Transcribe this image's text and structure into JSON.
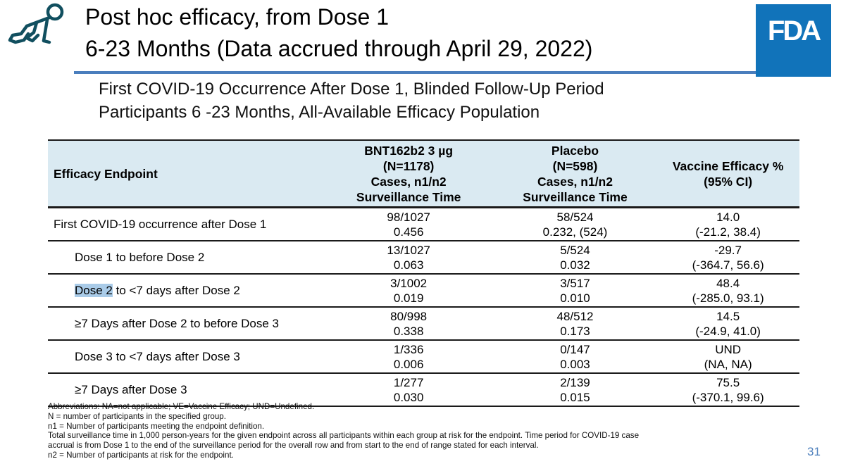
{
  "header": {
    "title_line1": "Post hoc efficacy, from Dose 1",
    "title_line2": "6-23 Months (Data accrued through April 29, 2022)",
    "logo_text": "FDA"
  },
  "icons": {
    "baby_icon": "crawling-baby-outline",
    "fda_logo": "fda-blue-square"
  },
  "subtitle": {
    "line1": "First COVID-19 Occurrence After Dose 1, Blinded Follow-Up Period",
    "line2": "Participants 6 -23 Months, All-Available Efficacy Population"
  },
  "table": {
    "header": {
      "endpoint": "Efficacy Endpoint",
      "bnt_lines": [
        "BNT162b2 3 µg",
        "(N=1178)",
        "Cases, n1/n2",
        "Surveillance Time"
      ],
      "placebo_lines": [
        "Placebo",
        "(N=598)",
        "Cases, n1/n2",
        "Surveillance Time"
      ],
      "ve_lines": [
        "Vaccine Efficacy %",
        "(95% CI)"
      ]
    },
    "rows": [
      {
        "indent": false,
        "endpoint": [
          {
            "text": "First COVID-19 occurrence after Dose 1",
            "highlight": false
          }
        ],
        "cells": [
          [
            "98/1027",
            "0.456"
          ],
          [
            "58/524",
            "0.232, (524)"
          ],
          [
            "14.0",
            "(-21.2, 38.4)"
          ]
        ]
      },
      {
        "indent": true,
        "endpoint": [
          {
            "text": "Dose 1 to before Dose 2",
            "highlight": false
          }
        ],
        "cells": [
          [
            "13/1027",
            "0.063"
          ],
          [
            "5/524",
            "0.032"
          ],
          [
            "-29.7",
            "(-364.7, 56.6)"
          ]
        ]
      },
      {
        "indent": true,
        "endpoint": [
          {
            "text": "Dose 2",
            "highlight": true
          },
          {
            "text": " to <7 days after Dose 2",
            "highlight": false
          }
        ],
        "cells": [
          [
            "3/1002",
            "0.019"
          ],
          [
            "3/517",
            "0.010"
          ],
          [
            "48.4",
            "(-285.0, 93.1)"
          ]
        ]
      },
      {
        "indent": true,
        "endpoint": [
          {
            "text": "≥7 Days after Dose 2 to before Dose 3",
            "highlight": false
          }
        ],
        "cells": [
          [
            "80/998",
            "0.338"
          ],
          [
            "48/512",
            "0.173"
          ],
          [
            "14.5",
            "(-24.9, 41.0)"
          ]
        ]
      },
      {
        "indent": true,
        "endpoint": [
          {
            "text": "Dose 3 to <7 days after Dose 3",
            "highlight": false
          }
        ],
        "cells": [
          [
            "1/336",
            "0.006"
          ],
          [
            "0/147",
            "0.003"
          ],
          [
            "UND",
            "(NA, NA)"
          ]
        ]
      },
      {
        "indent": true,
        "endpoint": [
          {
            "text": "≥7 Days after Dose 3",
            "highlight": false
          }
        ],
        "cells": [
          [
            "1/277",
            "0.030"
          ],
          [
            "2/139",
            "0.015"
          ],
          [
            "75.5",
            "(-370.1, 99.6)"
          ]
        ]
      }
    ]
  },
  "footnotes": [
    "Abbreviations: NA=not applicable; VE=Vaccine Efficacy; UND=Undefined.",
    "N = number of participants in the specified group.",
    "n1 = Number of participants meeting the endpoint definition.",
    "Total surveillance time in 1,000 person-years for the given endpoint across all participants within each group at risk for the endpoint. Time period for COVID-19 case",
    "accrual is from Dose 1 to the end of the surveillance period for the overall row and from start to the end of range stated for each interval.",
    "n2 = Number of participants at risk for the endpoint."
  ],
  "footer": {
    "page_number": "31"
  },
  "colors": {
    "accent_rule": "#4a7ebd",
    "fda_blue": "#1173ba",
    "table_header_bg": "#daeaf2",
    "text_highlight": "#a9cbe8",
    "page_number": "#4f81bd",
    "icon_teal": "#114f5f"
  }
}
